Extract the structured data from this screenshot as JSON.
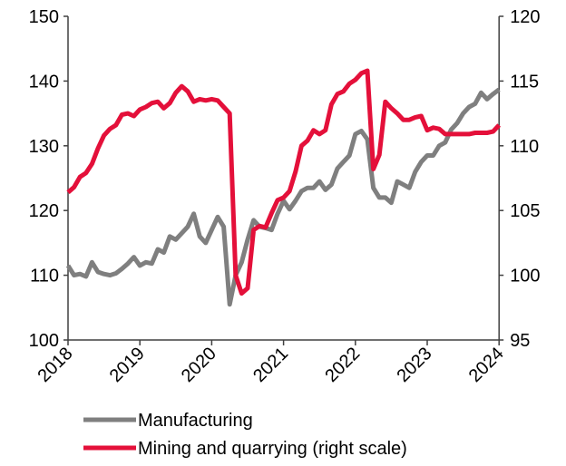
{
  "chart_data": {
    "type": "line",
    "x": [
      2018,
      2018.083,
      2018.167,
      2018.25,
      2018.333,
      2018.417,
      2018.5,
      2018.583,
      2018.667,
      2018.75,
      2018.833,
      2018.917,
      2019,
      2019.083,
      2019.167,
      2019.25,
      2019.333,
      2019.417,
      2019.5,
      2019.583,
      2019.667,
      2019.75,
      2019.833,
      2019.917,
      2020,
      2020.083,
      2020.167,
      2020.25,
      2020.333,
      2020.417,
      2020.5,
      2020.583,
      2020.667,
      2020.75,
      2020.833,
      2020.917,
      2021,
      2021.083,
      2021.167,
      2021.25,
      2021.333,
      2021.417,
      2021.5,
      2021.583,
      2021.667,
      2021.75,
      2021.833,
      2021.917,
      2022,
      2022.083,
      2022.167,
      2022.25,
      2022.333,
      2022.417,
      2022.5,
      2022.583,
      2022.667,
      2022.75,
      2022.833,
      2022.917,
      2023,
      2023.083,
      2023.167,
      2023.25,
      2023.333,
      2023.417,
      2023.5,
      2023.583,
      2023.667,
      2023.75,
      2023.833,
      2023.917,
      2024
    ],
    "series": [
      {
        "name": "Manufacturing",
        "color": "#7f7f7f",
        "values": [
          111.5,
          110,
          110.2,
          109.8,
          112,
          110.5,
          110.2,
          110,
          110.3,
          111,
          111.8,
          112.8,
          111.5,
          112,
          111.8,
          114,
          113.5,
          116,
          115.5,
          116.5,
          117.5,
          119.5,
          116,
          115,
          117,
          119,
          117.5,
          105.5,
          110,
          112,
          115.5,
          118.5,
          117.5,
          117.3,
          117,
          119.5,
          121.5,
          120.2,
          121.5,
          123,
          123.5,
          123.5,
          124.5,
          123.2,
          124,
          126.5,
          127.5,
          128.5,
          131.8,
          132.3,
          131,
          123.5,
          122,
          122,
          121.2,
          124.5,
          124,
          123.5,
          126,
          127.5,
          128.5,
          128.5,
          130,
          130.5,
          132.5,
          133.5,
          135,
          136,
          136.5,
          138.2,
          137.2,
          138,
          138.7
        ]
      },
      {
        "name": "Mining and quarrying (right scale)",
        "color": "#e4103a",
        "axis": "y2",
        "values": [
          106.4,
          106.8,
          107.6,
          107.9,
          108.6,
          109.8,
          110.8,
          111.3,
          111.6,
          112.4,
          112.5,
          112.3,
          112.8,
          113,
          113.3,
          113.4,
          112.9,
          113.3,
          114.1,
          114.6,
          114.2,
          113.4,
          113.6,
          113.5,
          113.6,
          113.5,
          113,
          112.5,
          100,
          98.6,
          99,
          103.5,
          103.8,
          103.7,
          104.8,
          105.8,
          106,
          106.5,
          108,
          110,
          110.4,
          111.2,
          110.9,
          111.2,
          113.2,
          114,
          114.2,
          114.8,
          115.1,
          115.6,
          115.8,
          108.2,
          109.3,
          113.4,
          112.9,
          112.5,
          112,
          112,
          112.2,
          112.3,
          111.2,
          111.4,
          111.3,
          110.9,
          110.9,
          110.9,
          110.9,
          110.9,
          111,
          111,
          111,
          111.1,
          111.6
        ]
      }
    ],
    "xlim": [
      2018,
      2024.08
    ],
    "xticks": [
      2018,
      2019,
      2020,
      2021,
      2022,
      2023,
      2024
    ],
    "ylim": [
      100,
      150
    ],
    "yticks": [
      100,
      110,
      120,
      130,
      140,
      150
    ],
    "y2lim": [
      95,
      120
    ],
    "y2ticks": [
      95,
      100,
      105,
      110,
      115,
      120
    ],
    "legend": "bottom"
  }
}
